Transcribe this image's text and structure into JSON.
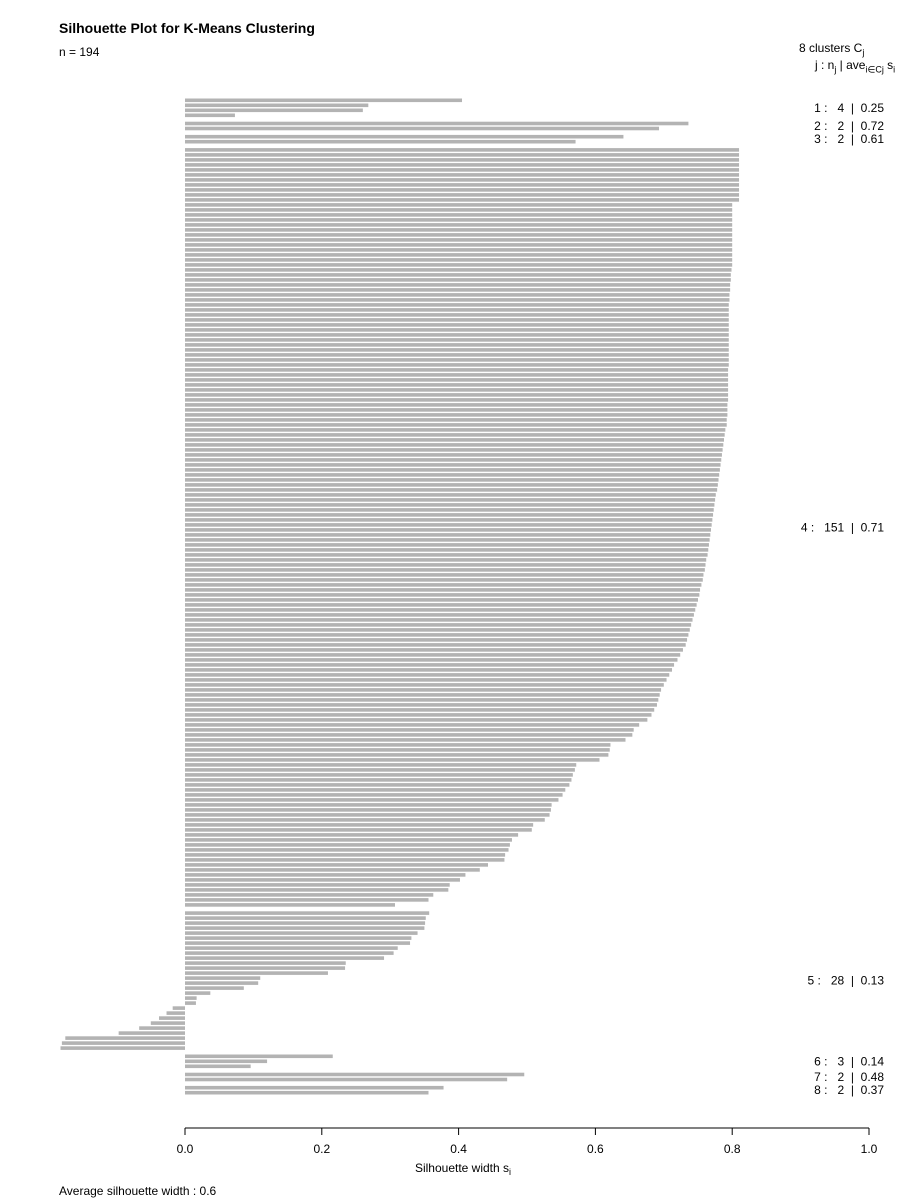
{
  "chart_data": {
    "type": "bar",
    "orientation": "horizontal",
    "title": "Silhouette Plot for K-Means Clustering",
    "n_label": "n = 194",
    "clusters_header": {
      "count_text": "8  clusters  C",
      "count_sub": "j",
      "cols_text": "j :  n",
      "cols_sub1": "j",
      "cols_mid": " | ave",
      "cols_sub2": "i∈Cj",
      "cols_end": "  s",
      "cols_sub3": "i"
    },
    "xlabel": "Silhouette width s",
    "xlabel_sub": "i",
    "xlim": [
      0.0,
      1.0
    ],
    "xticks": [
      "0.0",
      "0.2",
      "0.4",
      "0.6",
      "0.8",
      "1.0"
    ],
    "average_text": "Average silhouette width :  0.6",
    "clusters": [
      {
        "label": "1 :   4  |  0.25",
        "values": [
          0.405,
          0.268,
          0.26,
          0.073
        ]
      },
      {
        "label": "2 :   2  |  0.72",
        "values": [
          0.736,
          0.693
        ]
      },
      {
        "label": "3 :   2  |  0.61",
        "values": [
          0.641,
          0.571
        ]
      },
      {
        "label": "4 :   151  |  0.71",
        "values": [
          0.81,
          0.81,
          0.81,
          0.81,
          0.81,
          0.81,
          0.81,
          0.81,
          0.81,
          0.81,
          0.81,
          0.8,
          0.8,
          0.8,
          0.8,
          0.8,
          0.8,
          0.8,
          0.8,
          0.8,
          0.8,
          0.8,
          0.8,
          0.8,
          0.799,
          0.798,
          0.798,
          0.797,
          0.797,
          0.796,
          0.796,
          0.795,
          0.795,
          0.795,
          0.795,
          0.795,
          0.795,
          0.795,
          0.795,
          0.795,
          0.795,
          0.795,
          0.795,
          0.795,
          0.794,
          0.794,
          0.794,
          0.794,
          0.794,
          0.794,
          0.794,
          0.793,
          0.793,
          0.793,
          0.792,
          0.792,
          0.79,
          0.789,
          0.788,
          0.787,
          0.786,
          0.785,
          0.784,
          0.783,
          0.782,
          0.781,
          0.78,
          0.779,
          0.778,
          0.776,
          0.775,
          0.774,
          0.773,
          0.772,
          0.771,
          0.77,
          0.769,
          0.768,
          0.767,
          0.766,
          0.765,
          0.764,
          0.762,
          0.761,
          0.76,
          0.758,
          0.757,
          0.755,
          0.753,
          0.752,
          0.75,
          0.748,
          0.746,
          0.744,
          0.742,
          0.74,
          0.738,
          0.736,
          0.734,
          0.732,
          0.728,
          0.724,
          0.72,
          0.715,
          0.712,
          0.708,
          0.704,
          0.7,
          0.696,
          0.694,
          0.692,
          0.69,
          0.686,
          0.682,
          0.676,
          0.664,
          0.656,
          0.654,
          0.644,
          0.622,
          0.621,
          0.619,
          0.606,
          0.572,
          0.57,
          0.567,
          0.565,
          0.562,
          0.556,
          0.552,
          0.546,
          0.536,
          0.535,
          0.533,
          0.526,
          0.509,
          0.507,
          0.487,
          0.478,
          0.475,
          0.473,
          0.468,
          0.467,
          0.443,
          0.431,
          0.41,
          0.402,
          0.387,
          0.385,
          0.363,
          0.356,
          0.307
        ]
      },
      {
        "label": "5 :   28  |  0.13",
        "values": [
          0.357,
          0.352,
          0.351,
          0.35,
          0.34,
          0.331,
          0.329,
          0.311,
          0.305,
          0.291,
          0.235,
          0.234,
          0.209,
          0.11,
          0.107,
          0.086,
          0.037,
          0.017,
          0.016,
          -0.018,
          -0.027,
          -0.038,
          -0.05,
          -0.067,
          -0.097,
          -0.175,
          -0.18,
          -0.182
        ]
      },
      {
        "label": "6 :   3  |  0.14",
        "values": [
          0.216,
          0.12,
          0.096
        ]
      },
      {
        "label": "7 :   2  |  0.48",
        "values": [
          0.496,
          0.471
        ]
      },
      {
        "label": "8 :   2  |  0.37",
        "values": [
          0.378,
          0.356
        ]
      }
    ],
    "bar_color": "#b3b3b3",
    "grid": false,
    "legend": "none"
  }
}
